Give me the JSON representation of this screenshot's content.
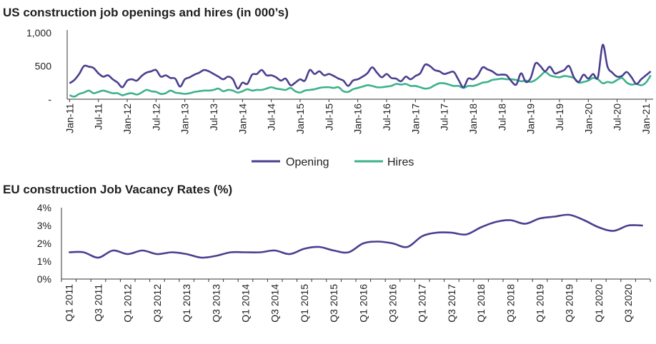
{
  "colors": {
    "opening": "#4a3f8f",
    "hires": "#3cb28c",
    "vacancy": "#4a3f8f",
    "axis": "#333333"
  },
  "chart_data": [
    {
      "type": "line",
      "title": "US construction job openings and hires (in 000’s)",
      "ylim": [
        0,
        1000
      ],
      "y_tick_labels": [
        "-",
        "500",
        "1,000"
      ],
      "y_tick_values": [
        0,
        500,
        1000
      ],
      "x_tick_labels": [
        "Jan-11",
        "Jul-11",
        "Jan-12",
        "Jul-12",
        "Jan-13",
        "Jul-13",
        "Jan-14",
        "Jul-14",
        "Jan-15",
        "Jul-15",
        "Jan-16",
        "Jul-16",
        "Jan-17",
        "Jul-17",
        "Jan-18",
        "Jul-18",
        "Jan-19",
        "Jul-19",
        "Jan-20",
        "Jul-20",
        "Jan-21"
      ],
      "legend": "bottom",
      "grid": false,
      "series": [
        {
          "name": "Opening",
          "values": [
            240,
            290,
            380,
            500,
            490,
            470,
            390,
            340,
            360,
            300,
            250,
            180,
            280,
            300,
            280,
            350,
            400,
            420,
            440,
            340,
            360,
            320,
            310,
            190,
            300,
            330,
            370,
            400,
            440,
            420,
            380,
            340,
            300,
            340,
            300,
            160,
            250,
            230,
            370,
            380,
            440,
            360,
            360,
            330,
            280,
            310,
            210,
            250,
            300,
            280,
            440,
            380,
            420,
            360,
            380,
            350,
            310,
            280,
            200,
            280,
            300,
            340,
            390,
            480,
            400,
            330,
            380,
            320,
            310,
            270,
            340,
            300,
            350,
            390,
            520,
            500,
            440,
            420,
            380,
            400,
            410,
            290,
            180,
            310,
            300,
            360,
            480,
            450,
            420,
            370,
            370,
            360,
            270,
            220,
            390,
            260,
            320,
            540,
            500,
            420,
            490,
            390,
            410,
            440,
            500,
            330,
            260,
            370,
            310,
            380,
            330,
            820,
            490,
            400,
            340,
            350,
            410,
            330,
            230,
            300,
            360,
            420
          ]
        },
        {
          "name": "Hires",
          "values": [
            60,
            40,
            80,
            100,
            130,
            90,
            110,
            130,
            110,
            90,
            90,
            60,
            80,
            90,
            70,
            100,
            140,
            120,
            110,
            80,
            90,
            130,
            100,
            90,
            80,
            90,
            110,
            120,
            130,
            130,
            140,
            160,
            120,
            140,
            130,
            100,
            120,
            150,
            130,
            140,
            140,
            160,
            180,
            160,
            150,
            140,
            170,
            120,
            100,
            130,
            140,
            150,
            170,
            180,
            180,
            170,
            180,
            120,
            110,
            150,
            170,
            190,
            210,
            200,
            180,
            180,
            190,
            200,
            230,
            220,
            230,
            200,
            200,
            180,
            160,
            170,
            210,
            240,
            240,
            220,
            200,
            200,
            170,
            200,
            200,
            220,
            250,
            260,
            290,
            300,
            310,
            300,
            300,
            290,
            270,
            280,
            260,
            290,
            350,
            410,
            360,
            340,
            330,
            350,
            340,
            320,
            250,
            260,
            280,
            320,
            300,
            240,
            260,
            250,
            290,
            320,
            250,
            220,
            230,
            210,
            250,
            360
          ]
        }
      ]
    },
    {
      "type": "line",
      "title": "EU construction Job Vacancy Rates (%)",
      "ylim": [
        0,
        4
      ],
      "y_tick_labels": [
        "0%",
        "1%",
        "2%",
        "3%",
        "4%"
      ],
      "y_tick_values": [
        0,
        1,
        2,
        3,
        4
      ],
      "x_tick_labels": [
        "Q1 2011",
        "Q3 2011",
        "Q1 2012",
        "Q3 2012",
        "Q1 2013",
        "Q3 2013",
        "Q1 2014",
        "Q3 2014",
        "Q1 2015",
        "Q3 2015",
        "Q1 2016",
        "Q3 2016",
        "Q1 2017",
        "Q3 2017",
        "Q1 2018",
        "Q3 2018",
        "Q1 2019",
        "Q3 2019",
        "Q1 2020",
        "Q3 2020"
      ],
      "grid": false,
      "series": [
        {
          "values": [
            1.5,
            1.5,
            1.2,
            1.6,
            1.4,
            1.6,
            1.4,
            1.5,
            1.4,
            1.2,
            1.3,
            1.5,
            1.5,
            1.5,
            1.6,
            1.4,
            1.7,
            1.8,
            1.6,
            1.5,
            2.0,
            2.1,
            2.0,
            1.8,
            2.4,
            2.6,
            2.6,
            2.5,
            2.9,
            3.2,
            3.3,
            3.1,
            3.4,
            3.5,
            3.6,
            3.3,
            2.9,
            2.7,
            3.0,
            3.0
          ]
        }
      ]
    }
  ]
}
